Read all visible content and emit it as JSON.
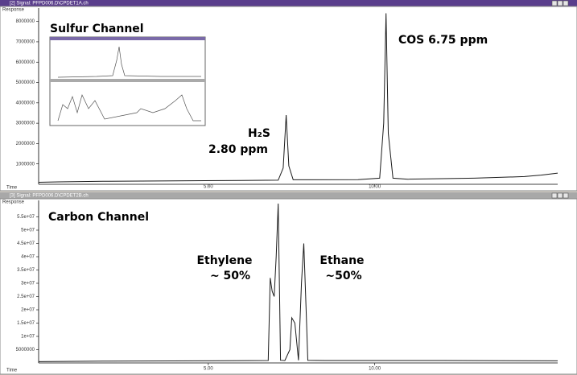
{
  "windows": [
    {
      "title": "[2] Signal: PFPD006.D\\CPDET1A.ch"
    },
    {
      "title": "[3] Signal: PFPD006.D\\CPDET2B.ch"
    }
  ],
  "chart_data": [
    {
      "type": "line",
      "y_label": "Response",
      "x_label": "Time",
      "xlim": [
        -0.1,
        15.5
      ],
      "xticks": [
        {
          "value": 5,
          "label": "5.00"
        },
        {
          "value": 10,
          "label": "10.00"
        }
      ],
      "ylim": [
        0,
        8500000
      ],
      "yticks": [
        1000000,
        2000000,
        3000000,
        4000000,
        5000000,
        6000000,
        7000000,
        8000000
      ],
      "annotations": [
        "Sulfur Channel",
        "H₂S",
        "2.80 ppm",
        "COS 6.75 ppm"
      ],
      "x": [
        -0.1,
        0.5,
        2,
        4,
        6,
        7.1,
        7.25,
        7.34,
        7.42,
        7.55,
        8,
        9.5,
        10.15,
        10.27,
        10.34,
        10.41,
        10.55,
        11,
        13,
        14.5,
        15,
        15.5
      ],
      "series": [
        {
          "color": "#1a1a1a",
          "values": [
            100000,
            120000,
            150000,
            170000,
            190000,
            200000,
            800000,
            3400000,
            900000,
            220000,
            220000,
            230000,
            300000,
            3000000,
            8400000,
            2500000,
            300000,
            250000,
            300000,
            380000,
            450000,
            550000
          ]
        }
      ]
    },
    {
      "type": "line",
      "y_label": "Response",
      "x_label": "Time",
      "xlim": [
        -0.1,
        15.5
      ],
      "xticks": [
        {
          "value": 5,
          "label": "5.00"
        },
        {
          "value": 10,
          "label": "10.00"
        }
      ],
      "ylim": [
        0,
        60000000
      ],
      "yticks": [
        5000000,
        {
          "value": 10000000,
          "label": "1e+07"
        },
        {
          "value": 15000000,
          "label": "1.5e+07"
        },
        {
          "value": 20000000,
          "label": "2e+07"
        },
        {
          "value": 25000000,
          "label": "2.5e+07"
        },
        {
          "value": 30000000,
          "label": "3e+07"
        },
        {
          "value": 35000000,
          "label": "3.5e+07"
        },
        {
          "value": 40000000,
          "label": "4e+07"
        },
        {
          "value": 45000000,
          "label": "4.5e+07"
        },
        {
          "value": 50000000,
          "label": "5e+07"
        },
        {
          "value": 55000000,
          "label": "5.5e+07"
        }
      ],
      "annotations": [
        "Carbon Channel",
        "Ethylene",
        "~ 50%",
        "Ethane",
        "~50%"
      ],
      "x": [
        -0.1,
        2,
        5,
        6.8,
        6.86,
        6.92,
        6.98,
        7.04,
        7.1,
        7.17,
        7.3,
        7.45,
        7.51,
        7.6,
        7.71,
        7.8,
        7.87,
        7.94,
        7.99,
        8.5,
        12,
        15.5
      ],
      "series": [
        {
          "color": "#1a1a1a",
          "values": [
            500000,
            700000,
            800000,
            900000,
            32000000,
            27000000,
            25000000,
            40000000,
            60000000,
            1000000,
            900000,
            5000000,
            17000000,
            15000000,
            1000000,
            30000000,
            45000000,
            20000000,
            1000000,
            900000,
            900000,
            800000
          ]
        }
      ]
    }
  ]
}
